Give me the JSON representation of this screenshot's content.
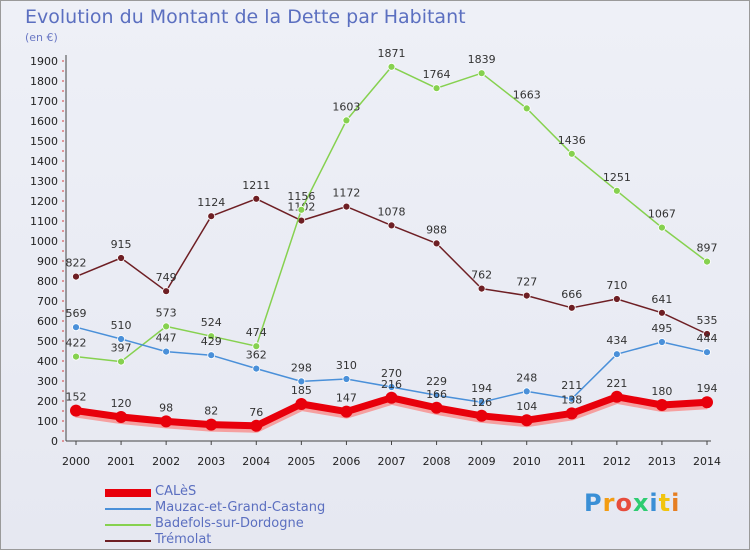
{
  "title": "Evolution du Montant de la Dette par Habitant",
  "unit": "(en €)",
  "logo": "Proxiti",
  "chart_data": {
    "type": "line",
    "title": "Evolution du Montant de la Dette par Habitant",
    "ylabel": "(en €)",
    "ylim": [
      0,
      1900
    ],
    "yticks": [
      0,
      100,
      200,
      300,
      400,
      500,
      600,
      700,
      800,
      900,
      1000,
      1100,
      1200,
      1300,
      1400,
      1500,
      1600,
      1700,
      1800,
      1900
    ],
    "grid": false,
    "legend_position": "bottom-left",
    "x": [
      "2000",
      "2001",
      "2002",
      "2003",
      "2004",
      "2005",
      "2006",
      "2007",
      "2008",
      "2009",
      "2010",
      "2011",
      "2012",
      "2013",
      "2014"
    ],
    "series": [
      {
        "name": "CALèS",
        "color": "#e8000b",
        "values": [
          152,
          120,
          98,
          82,
          76,
          185,
          147,
          216,
          166,
          126,
          104,
          138,
          221,
          180,
          194
        ],
        "labels": [
          "152",
          "120",
          "98",
          "82",
          "76",
          "185",
          "147",
          "216",
          "166",
          "126",
          "104",
          "138",
          "221",
          "180",
          "194"
        ]
      },
      {
        "name": "Mauzac-et-Grand-Castang",
        "color": "#4a90d9",
        "values": [
          569,
          510,
          447,
          429,
          362,
          298,
          310,
          270,
          229,
          194,
          248,
          211,
          434,
          495,
          444
        ],
        "labels": [
          "569",
          "510",
          "447",
          "429",
          "362",
          "298",
          "310",
          "270",
          "229",
          "194",
          "248",
          "211",
          "434",
          "495",
          "444"
        ]
      },
      {
        "name": "Badefols-sur-Dordogne",
        "color": "#86d14f",
        "values": [
          422,
          397,
          573,
          524,
          474,
          1156,
          1603,
          1871,
          1764,
          1839,
          1663,
          1436,
          1251,
          1067,
          897
        ],
        "labels": [
          "422",
          "397",
          "573",
          "524",
          "474",
          "1156",
          "1603",
          "1871",
          "1764",
          "1839",
          "1663",
          "1436",
          "1251",
          "1067",
          "897"
        ]
      },
      {
        "name": "Trémolat",
        "color": "#6e1f24",
        "values": [
          822,
          915,
          749,
          1124,
          1211,
          1102,
          1172,
          1078,
          988,
          762,
          727,
          666,
          710,
          641,
          535
        ],
        "labels": [
          "822",
          "915",
          "749",
          "1124",
          "1211",
          "1102",
          "1172",
          "1078",
          "988",
          "762",
          "727",
          "666",
          "710",
          "641",
          "535"
        ]
      }
    ]
  }
}
